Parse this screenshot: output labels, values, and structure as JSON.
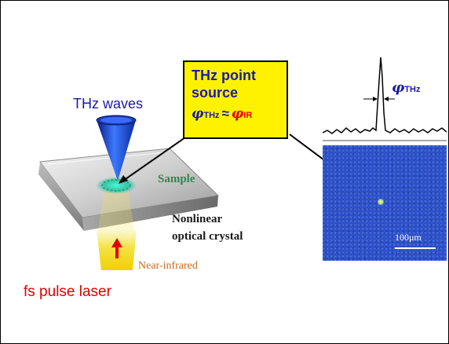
{
  "labels": {
    "thz_waves": "THz waves",
    "sample": "Sample",
    "nonlinear_line1": "Nonlinear",
    "nonlinear_line2": "optical crystal",
    "near_infrared": "Near-infrared",
    "fs_laser": "fs pulse laser"
  },
  "callout": {
    "line1": "THz point",
    "line2": "source",
    "phi": "φ",
    "sub_thz": "THz",
    "approx": "≈",
    "sub_ir": "IR"
  },
  "profile": {
    "phi": "φ",
    "sub": "THz"
  },
  "image_panel": {
    "scale": "100μm"
  },
  "colors": {
    "thz_blue": "#1a1aa8",
    "laser_red": "#e00000",
    "callout_yellow": "#fff200",
    "sample_green": "#2c8a52",
    "image_blue": "#2c50c8"
  }
}
